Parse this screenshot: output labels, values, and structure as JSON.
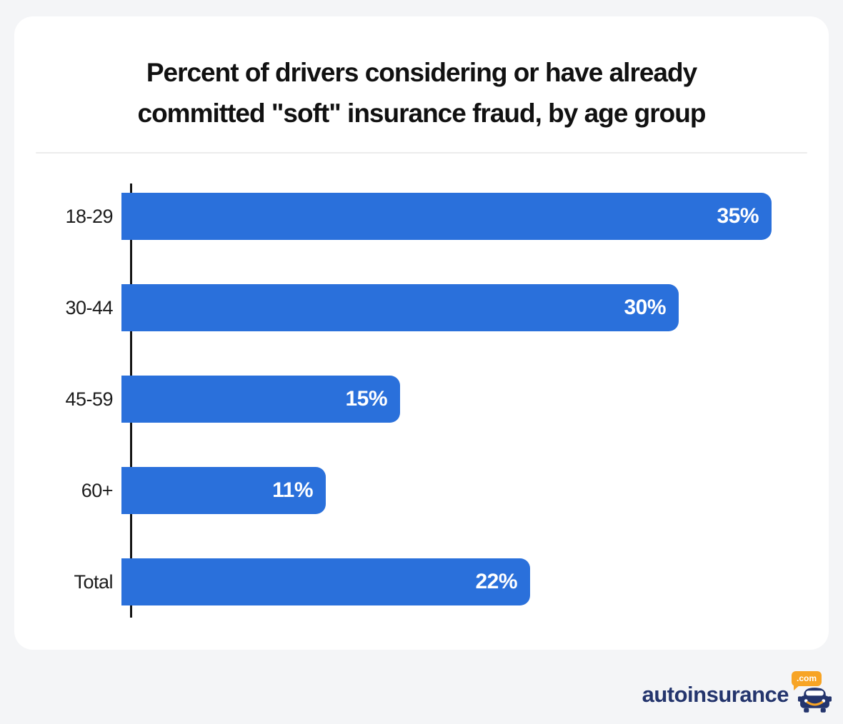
{
  "page": {
    "background_color": "#f4f5f7",
    "card_color": "#ffffff"
  },
  "title_lines": [
    "Percent of drivers considering or have already",
    "committed \"soft\" insurance fraud, by age group"
  ],
  "chart_data": {
    "type": "bar",
    "orientation": "horizontal",
    "title": "Percent of drivers considering or have already committed \"soft\" insurance fraud, by age group",
    "categories": [
      "18-29",
      "30-44",
      "45-59",
      "60+",
      "Total"
    ],
    "values": [
      35,
      30,
      15,
      11,
      22
    ],
    "value_labels": [
      "35%",
      "30%",
      "15%",
      "11%",
      "22%"
    ],
    "axis_max": 35,
    "bar_color": "#2a70db",
    "value_label_color": "#ffffff",
    "axis_line_color": "#151515",
    "grid": false,
    "legend": false,
    "xlabel": "",
    "ylabel": ""
  },
  "footer": {
    "brand_text": "autoinsurance",
    "badge_label": ".com",
    "brand_color": "#24356d",
    "accent_color": "#f7a425"
  }
}
